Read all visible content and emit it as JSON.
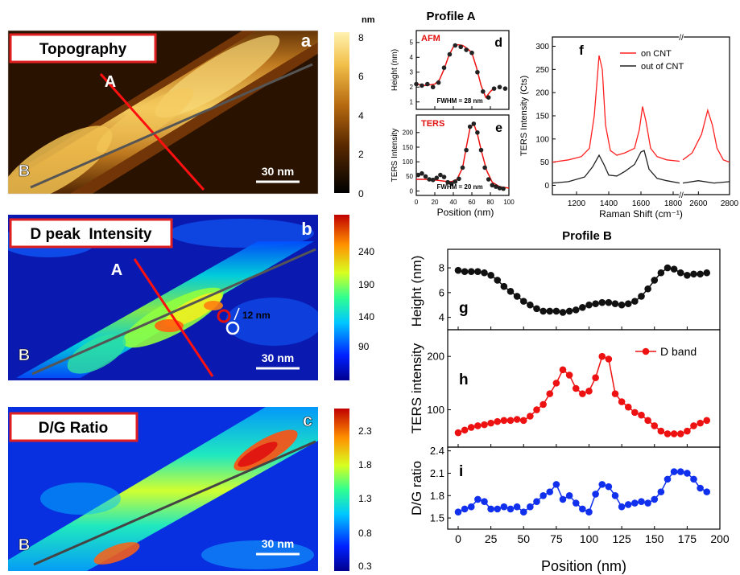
{
  "maps": [
    {
      "panel": "a",
      "title": "Topography",
      "scale_label": "30 nm",
      "line_labels": [
        "A",
        "B"
      ],
      "colorbar": {
        "unit": "nm",
        "ticks": [
          "8",
          "6",
          "4",
          "2",
          "0"
        ],
        "colormap": "afmhot"
      }
    },
    {
      "panel": "b",
      "title": "D peak  Intensity",
      "scale_label": "30 nm",
      "line_labels": [
        "A",
        "B"
      ],
      "annotation": "12 nm",
      "colorbar": {
        "unit": "",
        "ticks": [
          "240",
          "190",
          "140",
          "90"
        ],
        "colormap": "jet"
      }
    },
    {
      "panel": "c",
      "title": "D/G Ratio",
      "scale_label": "30 nm",
      "line_labels": [
        "B"
      ],
      "colorbar": {
        "unit": "",
        "ticks": [
          "2.3",
          "1.8",
          "1.3",
          "0.8",
          "0.3"
        ],
        "colormap": "jet"
      }
    }
  ],
  "profileA": {
    "title": "Profile A",
    "xlabel": "Position (nm)",
    "xticks": [
      "0",
      "20",
      "40",
      "60",
      "80",
      "100"
    ]
  },
  "profileB": {
    "title": "Profile B",
    "xlabel": "Position (nm)",
    "xticks": [
      "0",
      "25",
      "50",
      "75",
      "100",
      "125",
      "150",
      "175",
      "200"
    ]
  },
  "chart_data": [
    {
      "panel": "d",
      "type": "scatter",
      "label": "AFM",
      "annotation": "FWHM = 28 nm",
      "ylabel": "Height (nm)",
      "xlim": [
        0,
        100
      ],
      "ylim": [
        0.5,
        5.8
      ],
      "yticks": [
        "1",
        "2",
        "3",
        "4",
        "5"
      ],
      "x": [
        0,
        6,
        12,
        18,
        24,
        30,
        36,
        42,
        48,
        54,
        60,
        66,
        72,
        78,
        84,
        90,
        96
      ],
      "y": [
        2.2,
        2.1,
        2.2,
        2.0,
        2.3,
        3.3,
        4.2,
        4.8,
        4.7,
        4.5,
        4.3,
        3.0,
        1.7,
        1.3,
        1.9,
        2.0,
        1.9
      ],
      "fit_x": [
        0,
        10,
        20,
        25,
        30,
        35,
        40,
        45,
        50,
        55,
        60,
        65,
        70,
        75,
        80,
        85
      ],
      "fit_y": [
        2.2,
        2.1,
        2.2,
        2.5,
        3.2,
        4.1,
        4.7,
        4.85,
        4.8,
        4.6,
        4.3,
        3.3,
        2.1,
        1.3,
        1.7,
        2.0
      ]
    },
    {
      "panel": "e",
      "type": "scatter",
      "label": "TERS",
      "annotation": "FWHM = 20 nm",
      "ylabel": "TERS Intensity",
      "xlim": [
        0,
        100
      ],
      "ylim": [
        -15,
        260
      ],
      "yticks": [
        "0",
        "50",
        "100",
        "150",
        "200"
      ],
      "x": [
        2,
        6,
        10,
        14,
        18,
        22,
        26,
        30,
        34,
        38,
        42,
        46,
        50,
        54,
        58,
        62,
        66,
        70,
        74,
        78,
        82,
        86,
        90,
        94
      ],
      "y": [
        55,
        60,
        50,
        40,
        38,
        45,
        55,
        48,
        30,
        25,
        32,
        42,
        80,
        140,
        220,
        230,
        200,
        140,
        80,
        40,
        20,
        15,
        10,
        8
      ],
      "fit_x": [
        0,
        10,
        20,
        30,
        38,
        44,
        50,
        54,
        58,
        62,
        66,
        70,
        76,
        82,
        90,
        100
      ],
      "fit_y": [
        40,
        40,
        38,
        34,
        32,
        40,
        80,
        150,
        215,
        230,
        195,
        140,
        70,
        30,
        15,
        10
      ]
    },
    {
      "panel": "f",
      "type": "line",
      "xlabel": "Raman Shift (cm⁻¹)",
      "ylabel": "TERS Intensity (Cts)",
      "xlim": [
        1050,
        2800
      ],
      "ylim": [
        -20,
        320
      ],
      "xticks": [
        "1200",
        "1400",
        "1600",
        "1800",
        "2600",
        "2800"
      ],
      "yticks": [
        "0",
        "50",
        "100",
        "150",
        "200",
        "250",
        "300"
      ],
      "series": [
        {
          "name": "on CNT",
          "color": "#ff2020",
          "x": [
            1050,
            1150,
            1230,
            1280,
            1310,
            1340,
            1360,
            1380,
            1410,
            1450,
            1500,
            1560,
            1590,
            1610,
            1630,
            1660,
            1700,
            1760,
            1840,
            2500,
            2560,
            2620,
            2660,
            2690,
            2720,
            2760,
            2800
          ],
          "y": [
            50,
            55,
            62,
            80,
            150,
            280,
            250,
            130,
            75,
            65,
            70,
            80,
            120,
            170,
            140,
            80,
            62,
            55,
            52,
            55,
            70,
            110,
            162,
            130,
            80,
            55,
            50
          ]
        },
        {
          "name": "out of CNT",
          "color": "#202020",
          "x": [
            1050,
            1150,
            1250,
            1300,
            1340,
            1370,
            1400,
            1450,
            1500,
            1560,
            1600,
            1620,
            1650,
            1700,
            1760,
            1840,
            2500,
            2600,
            2700,
            2800
          ],
          "y": [
            5,
            8,
            18,
            40,
            65,
            45,
            22,
            20,
            30,
            45,
            72,
            75,
            35,
            15,
            10,
            5,
            5,
            10,
            5,
            8
          ]
        }
      ]
    },
    {
      "panel": "g",
      "type": "line",
      "ylabel": "Height (nm)",
      "xlim": [
        -8,
        200
      ],
      "ylim": [
        3,
        9.5
      ],
      "yticks": [
        "4",
        "6",
        "8"
      ],
      "color": "#111111",
      "x": [
        0,
        5,
        10,
        15,
        20,
        25,
        30,
        35,
        40,
        45,
        50,
        55,
        60,
        65,
        70,
        75,
        80,
        85,
        90,
        95,
        100,
        105,
        110,
        115,
        120,
        125,
        130,
        135,
        140,
        145,
        150,
        155,
        160,
        165,
        170,
        175,
        180,
        185,
        190
      ],
      "y": [
        7.8,
        7.7,
        7.7,
        7.7,
        7.6,
        7.4,
        7.0,
        6.5,
        6.1,
        5.7,
        5.3,
        5.0,
        4.7,
        4.5,
        4.5,
        4.5,
        4.4,
        4.5,
        4.6,
        4.8,
        5.0,
        5.1,
        5.2,
        5.2,
        5.1,
        5.0,
        5.1,
        5.3,
        5.7,
        6.3,
        7.0,
        7.6,
        8.0,
        7.9,
        7.6,
        7.4,
        7.5,
        7.5,
        7.6
      ]
    },
    {
      "panel": "h",
      "type": "line",
      "ylabel": "TERS intensity",
      "legend": "D band",
      "legend_position": "top-right",
      "xlim": [
        -8,
        200
      ],
      "ylim": [
        30,
        250
      ],
      "yticks": [
        "100",
        "200"
      ],
      "color": "#ee1111",
      "x": [
        0,
        5,
        10,
        15,
        20,
        25,
        30,
        35,
        40,
        45,
        50,
        55,
        60,
        65,
        70,
        75,
        80,
        85,
        90,
        95,
        100,
        105,
        110,
        115,
        120,
        125,
        130,
        135,
        140,
        145,
        150,
        155,
        160,
        165,
        170,
        175,
        180,
        185,
        190
      ],
      "y": [
        57,
        62,
        67,
        70,
        72,
        75,
        78,
        80,
        80,
        82,
        80,
        88,
        100,
        110,
        130,
        150,
        175,
        165,
        140,
        130,
        135,
        160,
        200,
        195,
        130,
        115,
        105,
        95,
        90,
        80,
        70,
        60,
        55,
        55,
        55,
        60,
        70,
        75,
        80
      ]
    },
    {
      "panel": "i",
      "type": "line",
      "ylabel": "D/G ratio",
      "xlabel": "Position (nm)",
      "xlim": [
        -8,
        200
      ],
      "ylim": [
        1.35,
        2.45
      ],
      "yticks": [
        "1.5",
        "1.8",
        "2.1",
        "2.4"
      ],
      "color": "#1030ee",
      "x": [
        0,
        5,
        10,
        15,
        20,
        25,
        30,
        35,
        40,
        45,
        50,
        55,
        60,
        65,
        70,
        75,
        80,
        85,
        90,
        95,
        100,
        105,
        110,
        115,
        120,
        125,
        130,
        135,
        140,
        145,
        150,
        155,
        160,
        165,
        170,
        175,
        180,
        185,
        190
      ],
      "y": [
        1.58,
        1.62,
        1.65,
        1.75,
        1.72,
        1.62,
        1.62,
        1.65,
        1.62,
        1.65,
        1.58,
        1.65,
        1.72,
        1.8,
        1.85,
        1.95,
        1.75,
        1.8,
        1.7,
        1.62,
        1.58,
        1.82,
        1.95,
        1.92,
        1.8,
        1.65,
        1.68,
        1.7,
        1.72,
        1.7,
        1.75,
        1.85,
        2.02,
        2.12,
        2.12,
        2.1,
        2.02,
        1.9,
        1.85
      ]
    }
  ]
}
